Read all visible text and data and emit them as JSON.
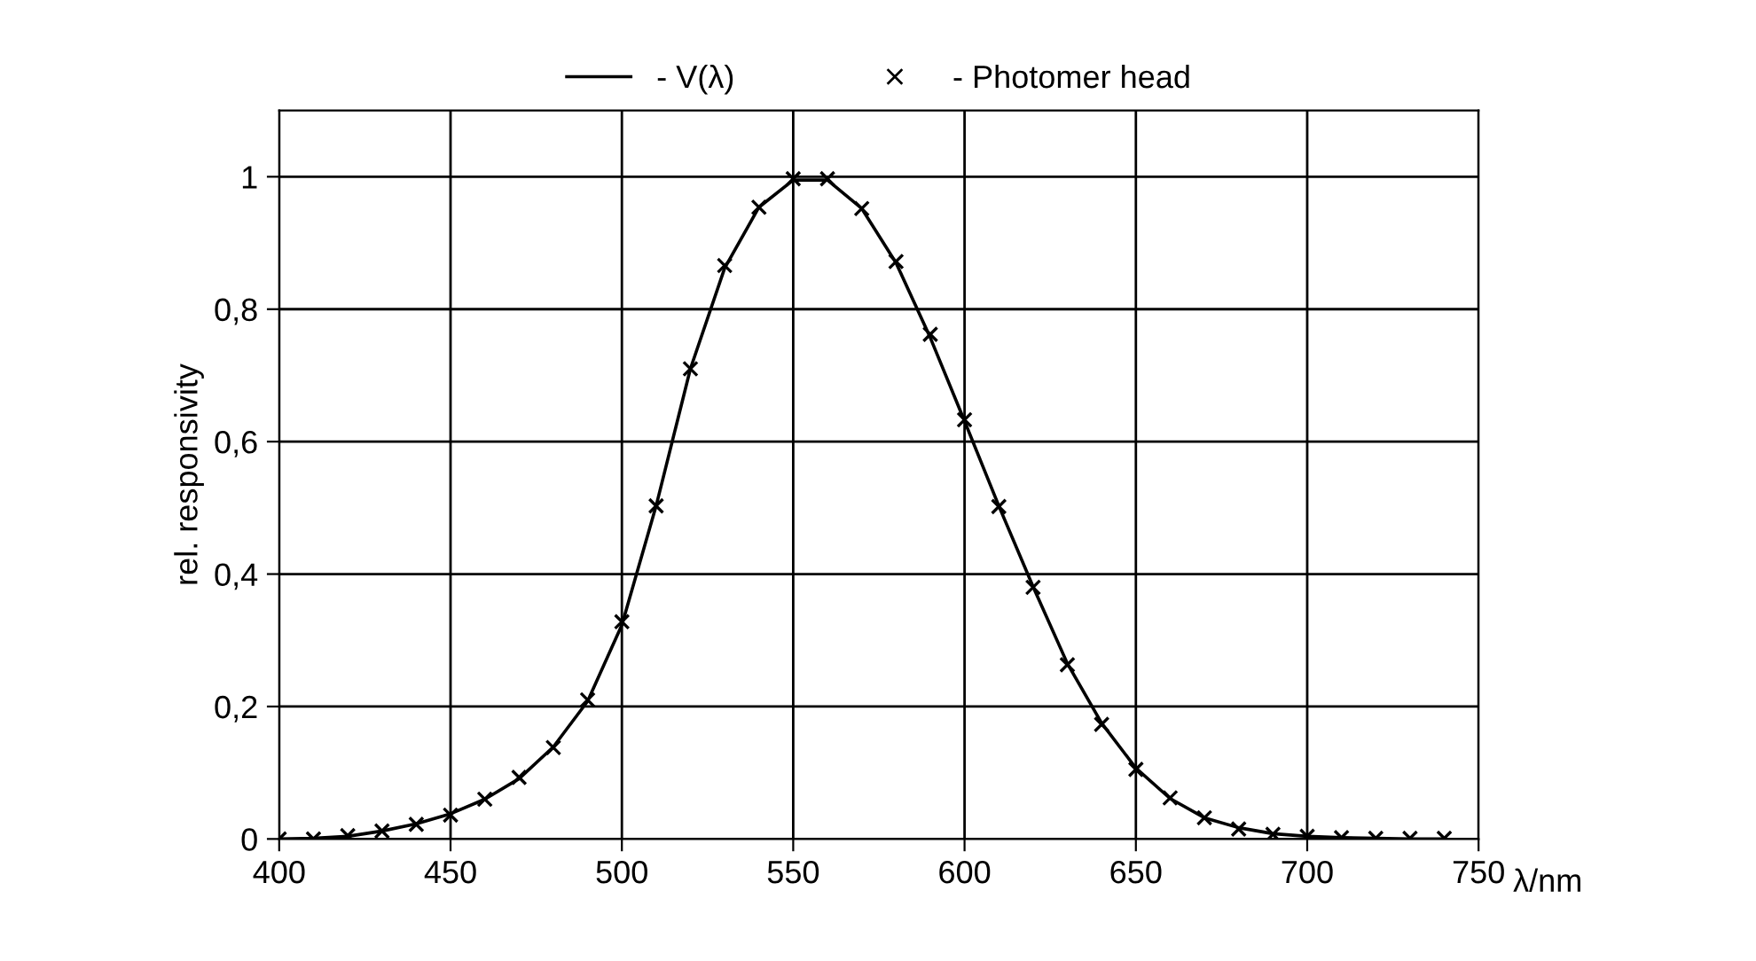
{
  "chart_data": {
    "type": "line",
    "xlabel": "λ/nm",
    "ylabel": "rel. responsivity",
    "x": [
      400,
      410,
      420,
      430,
      440,
      450,
      460,
      470,
      480,
      490,
      500,
      510,
      520,
      530,
      540,
      550,
      560,
      570,
      580,
      590,
      600,
      610,
      620,
      630,
      640,
      650,
      660,
      670,
      680,
      690,
      700,
      710,
      720,
      730,
      740
    ],
    "series": [
      {
        "name": "- V(λ)",
        "color": "#000000",
        "marker": "none",
        "values": [
          0.0,
          0.001,
          0.004,
          0.012,
          0.023,
          0.038,
          0.06,
          0.091,
          0.139,
          0.208,
          0.323,
          0.503,
          0.71,
          0.862,
          0.954,
          0.995,
          0.995,
          0.952,
          0.87,
          0.757,
          0.631,
          0.503,
          0.381,
          0.265,
          0.175,
          0.107,
          0.061,
          0.032,
          0.017,
          0.008,
          0.004,
          0.002,
          0.001,
          0.0,
          0.0
        ]
      },
      {
        "name": "- Photomer head",
        "type": "scatter",
        "color": "#000000",
        "marker": "cross",
        "values": [
          0.0,
          0.0,
          0.005,
          0.012,
          0.022,
          0.036,
          0.06,
          0.093,
          0.138,
          0.21,
          0.328,
          0.503,
          0.71,
          0.866,
          0.954,
          0.997,
          0.997,
          0.952,
          0.872,
          0.762,
          0.633,
          0.502,
          0.38,
          0.263,
          0.173,
          0.105,
          0.062,
          0.032,
          0.015,
          0.007,
          0.004,
          0.002,
          0.001,
          0.001,
          0.001
        ]
      }
    ],
    "xlim": [
      400,
      750
    ],
    "xticks": [
      400,
      450,
      500,
      550,
      600,
      650,
      700,
      750
    ],
    "ylim": [
      0,
      1.1
    ],
    "yticks": [
      0,
      {
        "value": 0.2,
        "label": "0,2"
      },
      {
        "value": 0.4,
        "label": "0,4"
      },
      {
        "value": 0.6,
        "label": "0,6"
      },
      {
        "value": 0.8,
        "label": "0,8"
      },
      1
    ],
    "grid": true,
    "legend": "top"
  }
}
